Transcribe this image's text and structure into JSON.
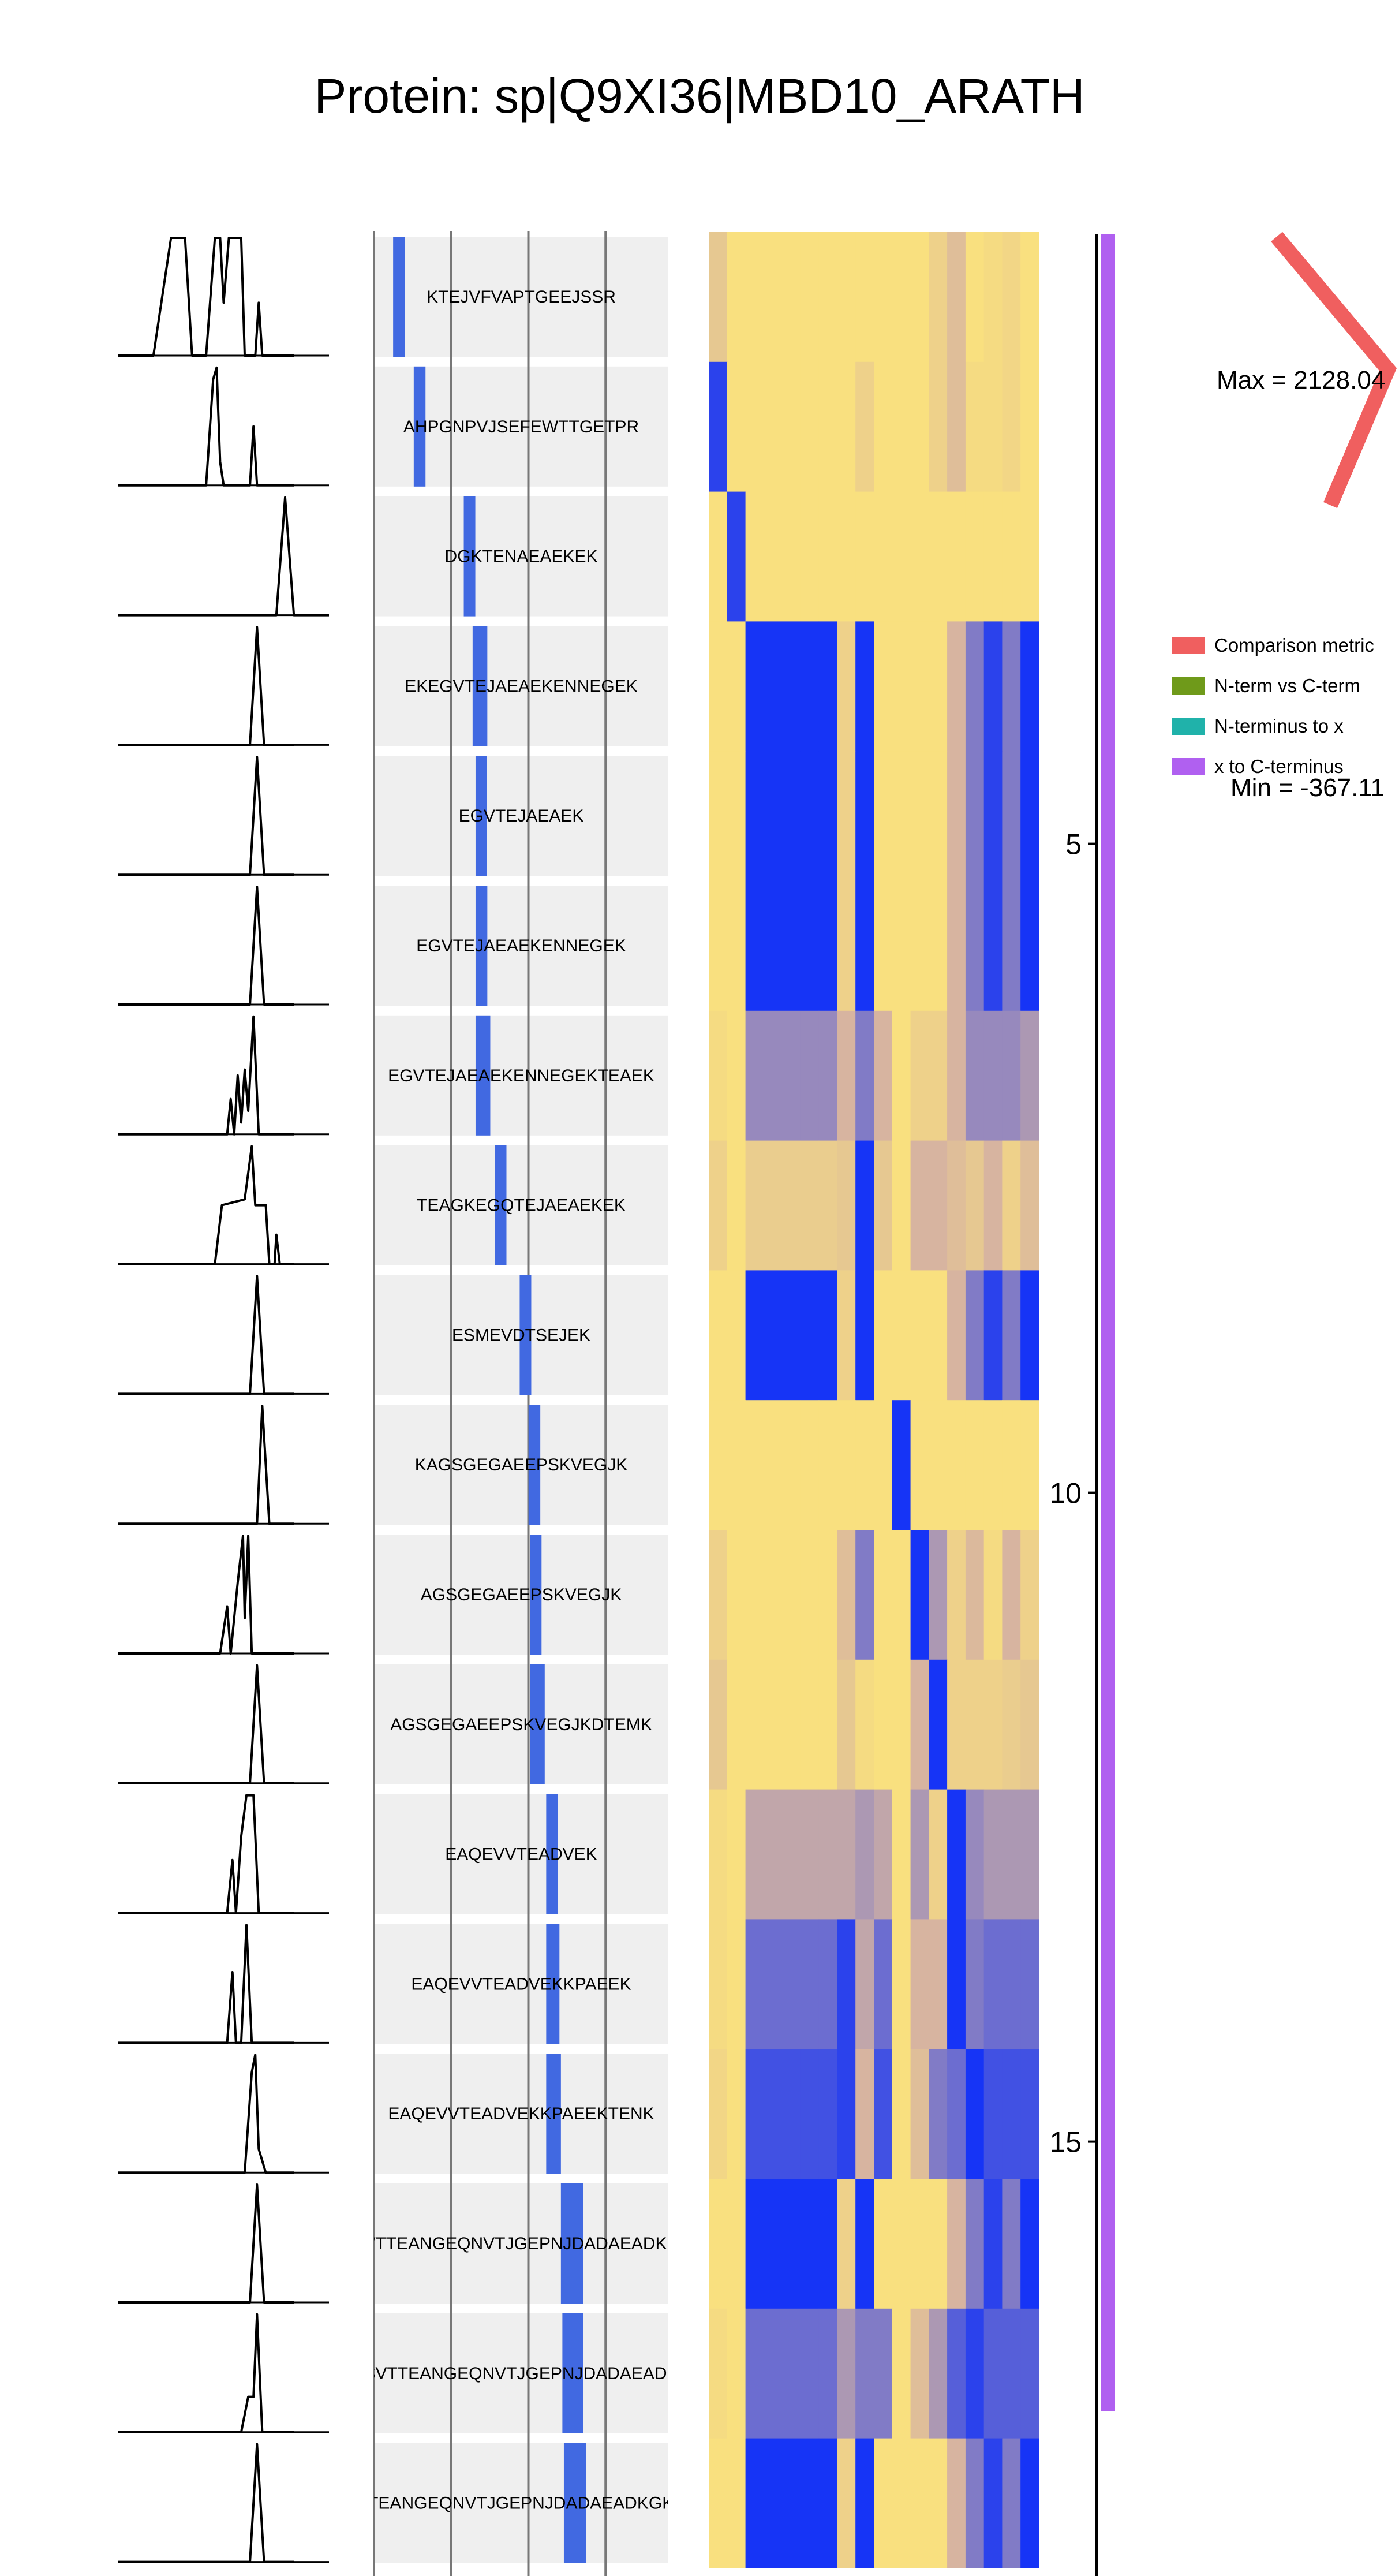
{
  "title": "Protein: sp|Q9XI36|MBD10_ARATH",
  "colors": {
    "panel_bg": "#efefef",
    "peptide_bar": "#4169e1",
    "heat_low": "#0026ff",
    "heat_high": "#fde57b",
    "heat_mid": "#d7b4a0",
    "comparison_metric": "#f05f5f",
    "n_vs_c": "#6f9a1a",
    "n_to_x": "#20b2aa",
    "x_to_c": "#b060f0"
  },
  "chart_data": [
    {
      "type": "line",
      "panel": "chromatogram profiles",
      "profiles": [
        [
          [
            0,
            0
          ],
          [
            0.2,
            0
          ],
          [
            0.3,
            1
          ],
          [
            0.38,
            1
          ],
          [
            0.42,
            0
          ],
          [
            0.5,
            0
          ],
          [
            0.55,
            1
          ],
          [
            0.58,
            1
          ],
          [
            0.6,
            0.45
          ],
          [
            0.63,
            1
          ],
          [
            0.7,
            1
          ],
          [
            0.72,
            0
          ],
          [
            0.78,
            0
          ],
          [
            0.8,
            0.45
          ],
          [
            0.82,
            0
          ],
          [
            1,
            0
          ]
        ],
        [
          [
            0,
            0
          ],
          [
            0.5,
            0
          ],
          [
            0.54,
            0.9
          ],
          [
            0.56,
            1
          ],
          [
            0.58,
            0.2
          ],
          [
            0.6,
            0.0
          ],
          [
            0.75,
            0
          ],
          [
            0.77,
            0.5
          ],
          [
            0.79,
            0
          ],
          [
            1,
            0
          ]
        ],
        [
          [
            0,
            0
          ],
          [
            0.9,
            0
          ],
          [
            0.95,
            1
          ],
          [
            1.0,
            0
          ],
          [
            1.2,
            0
          ]
        ],
        [
          [
            0,
            0
          ],
          [
            0.75,
            0
          ],
          [
            0.79,
            1
          ],
          [
            0.83,
            0
          ],
          [
            1,
            0
          ]
        ],
        [
          [
            0,
            0
          ],
          [
            0.75,
            0
          ],
          [
            0.79,
            1
          ],
          [
            0.83,
            0
          ],
          [
            1,
            0
          ]
        ],
        [
          [
            0,
            0
          ],
          [
            0.75,
            0
          ],
          [
            0.79,
            1
          ],
          [
            0.83,
            0
          ],
          [
            1,
            0
          ]
        ],
        [
          [
            0,
            0
          ],
          [
            0.62,
            0
          ],
          [
            0.64,
            0.3
          ],
          [
            0.66,
            0
          ],
          [
            0.68,
            0.5
          ],
          [
            0.7,
            0.1
          ],
          [
            0.72,
            0.55
          ],
          [
            0.74,
            0.2
          ],
          [
            0.77,
            1
          ],
          [
            0.8,
            0
          ],
          [
            1,
            0
          ]
        ],
        [
          [
            0,
            0
          ],
          [
            0.55,
            0
          ],
          [
            0.59,
            0.5
          ],
          [
            0.72,
            0.55
          ],
          [
            0.76,
            1
          ],
          [
            0.78,
            0.5
          ],
          [
            0.84,
            0.5
          ],
          [
            0.86,
            0
          ],
          [
            0.89,
            0
          ],
          [
            0.9,
            0.25
          ],
          [
            0.92,
            0
          ],
          [
            1,
            0
          ]
        ],
        [
          [
            0,
            0
          ],
          [
            0.75,
            0
          ],
          [
            0.79,
            1
          ],
          [
            0.83,
            0
          ],
          [
            1,
            0
          ]
        ],
        [
          [
            0,
            0
          ],
          [
            0.79,
            0
          ],
          [
            0.82,
            1
          ],
          [
            0.86,
            0
          ],
          [
            1,
            0
          ]
        ],
        [
          [
            0,
            0
          ],
          [
            0.58,
            0
          ],
          [
            0.62,
            0.4
          ],
          [
            0.64,
            0
          ],
          [
            0.68,
            0.6
          ],
          [
            0.71,
            1
          ],
          [
            0.72,
            0.3
          ],
          [
            0.74,
            1
          ],
          [
            0.76,
            0
          ],
          [
            1,
            0
          ]
        ],
        [
          [
            0,
            0
          ],
          [
            0.75,
            0
          ],
          [
            0.79,
            1
          ],
          [
            0.83,
            0
          ],
          [
            1,
            0
          ]
        ],
        [
          [
            0,
            0
          ],
          [
            0.62,
            0
          ],
          [
            0.65,
            0.45
          ],
          [
            0.67,
            0
          ],
          [
            0.7,
            0.65
          ],
          [
            0.73,
            1
          ],
          [
            0.77,
            1
          ],
          [
            0.8,
            0
          ],
          [
            1,
            0
          ]
        ],
        [
          [
            0,
            0
          ],
          [
            0.62,
            0
          ],
          [
            0.65,
            0.6
          ],
          [
            0.67,
            0
          ],
          [
            0.7,
            0.0
          ],
          [
            0.73,
            1
          ],
          [
            0.76,
            0
          ],
          [
            1,
            0
          ]
        ],
        [
          [
            0,
            0
          ],
          [
            0.72,
            0
          ],
          [
            0.76,
            0.85
          ],
          [
            0.78,
            1
          ],
          [
            0.8,
            0.2
          ],
          [
            0.84,
            0
          ],
          [
            1,
            0
          ]
        ],
        [
          [
            0,
            0
          ],
          [
            0.75,
            0
          ],
          [
            0.79,
            1
          ],
          [
            0.83,
            0
          ],
          [
            1,
            0
          ]
        ],
        [
          [
            0,
            0
          ],
          [
            0.7,
            0
          ],
          [
            0.74,
            0.3
          ],
          [
            0.77,
            0.3
          ],
          [
            0.79,
            1
          ],
          [
            0.82,
            0
          ],
          [
            1,
            0
          ]
        ],
        [
          [
            0,
            0
          ],
          [
            0.75,
            0
          ],
          [
            0.79,
            1
          ],
          [
            0.83,
            0
          ],
          [
            1,
            0
          ]
        ]
      ]
    },
    {
      "type": "bar",
      "panel": "peptide map",
      "peptides": [
        {
          "sequence": "KTEJVFVAPTGEEJSSR",
          "start": 0.065,
          "end": 0.1
        },
        {
          "sequence": "AHPGNPVJSEFEWTTGETPR",
          "start": 0.135,
          "end": 0.175
        },
        {
          "sequence": "DGKTENAEAEKEK",
          "start": 0.305,
          "end": 0.335
        },
        {
          "sequence": "EKEGVTEJAEAEKENNEGEK",
          "start": 0.335,
          "end": 0.385
        },
        {
          "sequence": "EGVTEJAEAEK",
          "start": 0.345,
          "end": 0.37
        },
        {
          "sequence": "EGVTEJAEAEKENNEGEK",
          "start": 0.345,
          "end": 0.385
        },
        {
          "sequence": "EGVTEJAEAEKENNEGEKTEAEK",
          "start": 0.345,
          "end": 0.395
        },
        {
          "sequence": "TEAGKEGQTEJAEAEKEK",
          "start": 0.41,
          "end": 0.45
        },
        {
          "sequence": "ESMEVDTSEJEK",
          "start": 0.495,
          "end": 0.52
        },
        {
          "sequence": "KAGSGEGAEEPSKVEGJK",
          "start": 0.525,
          "end": 0.565
        },
        {
          "sequence": "AGSGEGAEEPSKVEGJK",
          "start": 0.53,
          "end": 0.565
        },
        {
          "sequence": "AGSGEGAEEPSKVEGJKDTEMK",
          "start": 0.53,
          "end": 0.58
        },
        {
          "sequence": "EAQEVVTEADVEK",
          "start": 0.585,
          "end": 0.615
        },
        {
          "sequence": "EAQEVVTEADVEKKPAEEK",
          "start": 0.585,
          "end": 0.63
        },
        {
          "sequence": "EAQEVVTEADVEKKPAEEKTENK",
          "start": 0.585,
          "end": 0.635
        },
        {
          "sequence": "KGSVTTEANGEQNVTJGEPNJDADAEADKGKEK",
          "start": 0.635,
          "end": 0.71
        },
        {
          "sequence": "GSVTTEANGEQNVTJGEPNJDADAEADKG",
          "start": 0.64,
          "end": 0.71
        },
        {
          "sequence": "VTTEANGEQNVTJGEPNJDADAEADKGKEK",
          "start": 0.645,
          "end": 0.72
        }
      ],
      "vlines": [
        0,
        0.25,
        0.5,
        0.75
      ]
    },
    {
      "type": "heatmap",
      "panel": "comparison heatmap",
      "columns": [
        1,
        1,
        3,
        1,
        1,
        1,
        1,
        1,
        1,
        1,
        1,
        1,
        1,
        1,
        1,
        1
      ],
      "rows": [
        [
          0.3,
          0.05,
          0.05,
          0.05,
          0.05,
          0.05,
          0.05,
          0.05,
          0.05,
          0.05,
          0.2,
          0.4,
          0.05,
          0.1,
          0.15,
          0.05
        ],
        [
          0.9,
          0.05,
          0.05,
          0.05,
          0.05,
          0.05,
          0.2,
          0.05,
          0.05,
          0.05,
          0.2,
          0.4,
          0.1,
          0.1,
          0.15,
          0.05
        ],
        [
          0.05,
          0.9,
          0.05,
          0.05,
          0.05,
          0.05,
          0.05,
          0.05,
          0.05,
          0.05,
          0.05,
          0.05,
          0.05,
          0.05,
          0.05,
          0.05
        ],
        [
          0.05,
          0.05,
          0.95,
          0.95,
          0.95,
          0.2,
          0.95,
          0.05,
          0.05,
          0.05,
          0.05,
          0.5,
          0.7,
          0.9,
          0.7,
          0.95
        ],
        [
          0.05,
          0.05,
          0.95,
          0.95,
          0.95,
          0.2,
          0.95,
          0.05,
          0.05,
          0.05,
          0.05,
          0.5,
          0.7,
          0.9,
          0.7,
          0.95
        ],
        [
          0.05,
          0.05,
          0.95,
          0.95,
          0.95,
          0.2,
          0.95,
          0.05,
          0.05,
          0.05,
          0.05,
          0.5,
          0.7,
          0.9,
          0.7,
          0.95
        ],
        [
          0.1,
          0.05,
          0.65,
          0.65,
          0.65,
          0.5,
          0.7,
          0.5,
          0.05,
          0.2,
          0.2,
          0.5,
          0.65,
          0.65,
          0.65,
          0.6
        ],
        [
          0.2,
          0.05,
          0.25,
          0.25,
          0.25,
          0.3,
          0.95,
          0.3,
          0.05,
          0.5,
          0.5,
          0.4,
          0.3,
          0.5,
          0.2,
          0.4
        ],
        [
          0.05,
          0.05,
          0.95,
          0.95,
          0.95,
          0.2,
          0.95,
          0.05,
          0.05,
          0.05,
          0.05,
          0.5,
          0.7,
          0.9,
          0.7,
          0.95
        ],
        [
          0.05,
          0.05,
          0.05,
          0.05,
          0.05,
          0.05,
          0.05,
          0.05,
          0.95,
          0.05,
          0.05,
          0.05,
          0.05,
          0.05,
          0.05,
          0.05
        ],
        [
          0.2,
          0.05,
          0.05,
          0.05,
          0.05,
          0.4,
          0.7,
          0.05,
          0.05,
          0.95,
          0.6,
          0.2,
          0.45,
          0.1,
          0.5,
          0.2
        ],
        [
          0.3,
          0.05,
          0.05,
          0.05,
          0.05,
          0.3,
          0.1,
          0.05,
          0.05,
          0.5,
          0.95,
          0.2,
          0.2,
          0.2,
          0.25,
          0.3
        ],
        [
          0.1,
          0.05,
          0.55,
          0.55,
          0.55,
          0.55,
          0.6,
          0.55,
          0.05,
          0.6,
          0.2,
          0.95,
          0.65,
          0.6,
          0.6,
          0.6
        ],
        [
          0.1,
          0.05,
          0.75,
          0.75,
          0.75,
          0.9,
          0.55,
          0.75,
          0.05,
          0.5,
          0.5,
          0.95,
          0.7,
          0.75,
          0.75,
          0.75
        ],
        [
          0.15,
          0.05,
          0.85,
          0.85,
          0.85,
          0.9,
          0.5,
          0.85,
          0.05,
          0.4,
          0.7,
          0.75,
          0.95,
          0.85,
          0.85,
          0.85
        ],
        [
          0.05,
          0.05,
          0.95,
          0.95,
          0.95,
          0.2,
          0.95,
          0.05,
          0.05,
          0.05,
          0.05,
          0.5,
          0.7,
          0.9,
          0.7,
          0.95
        ],
        [
          0.1,
          0.05,
          0.75,
          0.75,
          0.75,
          0.6,
          0.7,
          0.7,
          0.05,
          0.4,
          0.6,
          0.8,
          0.9,
          0.8,
          0.8,
          0.8
        ],
        [
          0.05,
          0.05,
          0.95,
          0.95,
          0.95,
          0.2,
          0.95,
          0.05,
          0.05,
          0.05,
          0.05,
          0.5,
          0.7,
          0.9,
          0.7,
          0.95
        ]
      ]
    },
    {
      "type": "bar",
      "panel": "position axis",
      "orientation": "vertical",
      "ticks": [
        5,
        10,
        15
      ],
      "ylim": [
        1,
        18
      ],
      "bar": {
        "series": "x to C-terminus",
        "from": 0.5,
        "to": 17.2
      }
    },
    {
      "type": "line",
      "panel": "comparison metric",
      "max_label": "Max = 2128.04",
      "min_label": "Min = -367.11",
      "points": [
        [
          1,
          0.0
        ],
        [
          1.5,
          1.0
        ],
        [
          2.0,
          0.3
        ]
      ]
    }
  ],
  "legend": {
    "items": [
      {
        "label": "Comparison metric",
        "color_key": "comparison_metric"
      },
      {
        "label": "N-term vs C-term",
        "color_key": "n_vs_c"
      },
      {
        "label": "N-terminus to x",
        "color_key": "n_to_x"
      },
      {
        "label": "x to C-terminus",
        "color_key": "x_to_c"
      }
    ]
  }
}
